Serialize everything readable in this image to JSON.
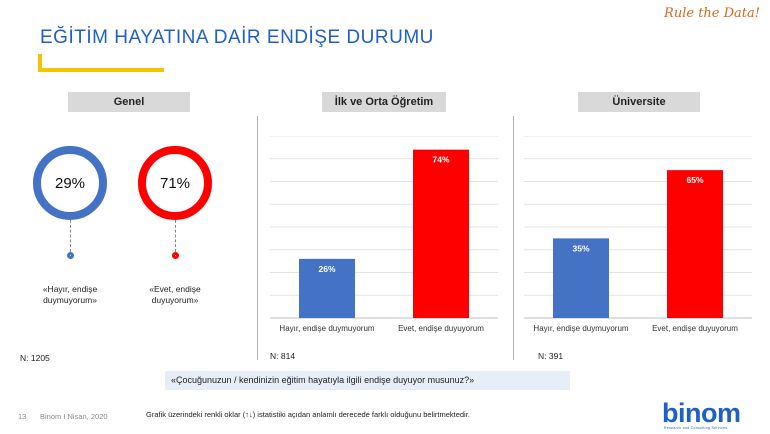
{
  "header": {
    "title": "EĞİTİM HAYATINA DAİR ENDİŞE DURUMU",
    "brand_tag": "Rule the Data!"
  },
  "sections": {
    "general": {
      "label": "Genel",
      "n": "N: 1205"
    },
    "primary": {
      "label": "İlk ve Orta Öğretim",
      "n": "N: 814"
    },
    "university": {
      "label": "Üniversite",
      "n": "N: 391"
    }
  },
  "donuts": [
    {
      "value_label": "29%",
      "line1": "«Hayır, endişe",
      "line2": "duymuyorum»"
    },
    {
      "value_label": "71%",
      "line1": "«Evet, endişe",
      "line2": "duyuyorum»"
    }
  ],
  "question": "«Çocuğunuzun / kendinizin eğitim hayatıyla ilgili endişe duyuyor musunuz?»",
  "footer": {
    "page_number": "13",
    "date": "Binom I Nisan, 2020",
    "note": "Grafik üzerindeki renkli oklar (↑↓) istatistiki açıdan anlamlı derecede farklı olduğunu belirtmektedir."
  },
  "logo": {
    "text": "binom",
    "sub": "Research and Consulting Services"
  },
  "colors": {
    "blue": "#4472c4",
    "red": "#ff0000",
    "title": "#1f5fc9",
    "accent": "#f5c400"
  },
  "chart_data": [
    {
      "type": "pie",
      "title": "Genel",
      "categories": [
        "«Hayır, endişe duymuyorum»",
        "«Evet, endişe duyuyorum»"
      ],
      "values": [
        29,
        71
      ]
    },
    {
      "type": "bar",
      "title": "İlk ve Orta Öğretim",
      "categories": [
        "Hayır, endişe duymuyorum",
        "Evet, endişe duyuyorum"
      ],
      "values": [
        26,
        74
      ],
      "value_labels": [
        "26%",
        "74%"
      ],
      "ylim": [
        0,
        80
      ],
      "grid": true
    },
    {
      "type": "bar",
      "title": "Üniversite",
      "categories": [
        "Hayır, endişe duymuyorum",
        "Evet, endişe duyuyorum"
      ],
      "values": [
        35,
        65
      ],
      "value_labels": [
        "35%",
        "65%"
      ],
      "ylim": [
        0,
        80
      ],
      "grid": true
    }
  ]
}
